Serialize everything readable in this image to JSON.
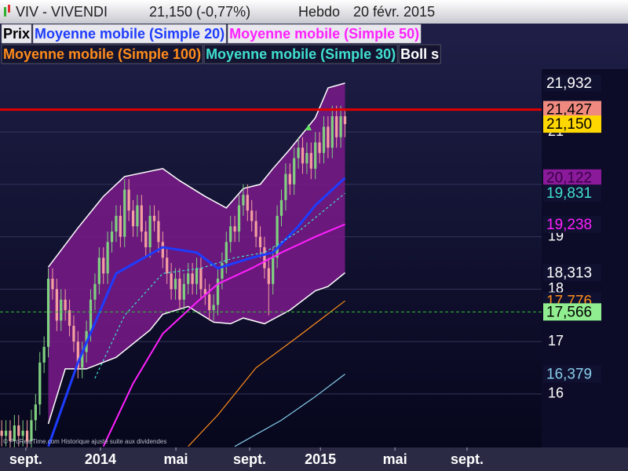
{
  "chart_data": {
    "type": "candlestick",
    "title": "VIV - VIVENDI",
    "quote": "21,150 (-0,77%)",
    "period": "Hebdo",
    "date": "20 févr. 2015",
    "note": "© ProRealTime.com Historique ajusté suite aux dividendes",
    "ylim": [
      14.98,
      22.2
    ],
    "yticks": [
      16,
      17,
      18,
      19,
      20,
      21
    ],
    "xlim": [
      -0.4,
      127.4
    ],
    "xticks": [
      {
        "value": 5.7,
        "label": "sept."
      },
      {
        "value": 23.3,
        "label": "2014"
      },
      {
        "value": 41.1,
        "label": "mai"
      },
      {
        "value": 58.5,
        "label": "sept."
      },
      {
        "value": 75.2,
        "label": "2015"
      },
      {
        "value": 92.8,
        "label": "mai"
      },
      {
        "value": 109.8,
        "label": "sept."
      }
    ],
    "grid": true,
    "prices": {
      "name": "Prix",
      "up_color": "#80d080",
      "down_color": "#f4a0a0",
      "x": [
        0,
        1,
        2,
        3,
        4,
        5,
        6,
        7,
        8,
        9,
        10,
        11,
        12,
        13,
        14,
        15,
        16,
        17,
        18,
        19,
        20,
        21,
        22,
        23,
        24,
        25,
        26,
        27,
        28,
        29,
        30,
        31,
        32,
        33,
        34,
        35,
        36,
        37,
        38,
        39,
        40,
        41,
        42,
        43,
        44,
        45,
        46,
        47,
        48,
        49,
        50,
        51,
        52,
        53,
        54,
        55,
        56,
        57,
        58,
        59,
        60,
        61,
        62,
        63,
        64,
        65,
        66,
        67,
        68,
        69,
        70,
        71,
        72,
        73,
        74,
        75,
        76,
        77,
        78,
        79,
        80,
        81
      ],
      "open": [
        15.3,
        15.2,
        15.3,
        15.1,
        15.4,
        15.2,
        15.3,
        15.1,
        15.5,
        15.8,
        16.6,
        16.9,
        18.2,
        18.0,
        17.4,
        17.8,
        17.6,
        17.3,
        17.0,
        16.5,
        16.8,
        17.2,
        17.8,
        18.1,
        18.6,
        18.3,
        18.9,
        19.1,
        19.4,
        19.0,
        19.9,
        19.5,
        19.2,
        19.6,
        19.1,
        18.8,
        19.4,
        19.3,
        18.9,
        18.6,
        18.3,
        18.0,
        18.2,
        17.8,
        18.1,
        18.3,
        18.1,
        18.4,
        18.0,
        17.9,
        17.6,
        17.7,
        18.2,
        18.5,
        18.9,
        19.2,
        19.1,
        19.6,
        19.8,
        19.5,
        19.3,
        19.0,
        18.8,
        18.4,
        18.1,
        18.6,
        19.4,
        19.7,
        20.2,
        20.0,
        20.5,
        20.7,
        20.4,
        20.6,
        20.3,
        20.8,
        20.6,
        21.1,
        20.7,
        21.3,
        20.9,
        21.3
      ],
      "high": [
        15.5,
        15.5,
        15.5,
        15.6,
        15.6,
        15.5,
        15.5,
        15.7,
        16.0,
        16.8,
        17.1,
        18.4,
        18.4,
        18.2,
        18.0,
        18.0,
        17.8,
        17.5,
        17.2,
        17.0,
        17.4,
        18.0,
        18.3,
        18.8,
        18.8,
        19.1,
        19.3,
        19.6,
        19.6,
        20.1,
        20.1,
        19.7,
        19.8,
        19.8,
        19.3,
        19.6,
        19.6,
        19.5,
        19.1,
        18.8,
        18.5,
        18.4,
        18.4,
        18.3,
        18.5,
        18.5,
        18.6,
        18.6,
        18.2,
        18.1,
        17.9,
        18.4,
        18.7,
        19.1,
        19.4,
        19.4,
        19.8,
        20.0,
        20.0,
        19.7,
        19.5,
        19.2,
        19.0,
        18.6,
        18.8,
        19.6,
        19.9,
        20.4,
        20.4,
        20.7,
        20.9,
        20.9,
        20.8,
        20.8,
        21.0,
        21.0,
        21.3,
        21.3,
        21.5,
        21.5,
        21.5,
        21.4
      ],
      "low": [
        15.0,
        15.0,
        14.9,
        14.9,
        15.0,
        15.0,
        14.9,
        14.9,
        15.3,
        15.6,
        16.4,
        16.7,
        17.8,
        17.2,
        17.2,
        17.4,
        17.1,
        16.8,
        16.3,
        16.3,
        16.6,
        17.0,
        17.6,
        17.9,
        18.1,
        18.1,
        18.7,
        18.9,
        18.8,
        18.8,
        19.3,
        19.0,
        19.0,
        18.9,
        18.6,
        18.6,
        19.1,
        18.7,
        18.4,
        18.1,
        17.8,
        17.8,
        17.6,
        17.6,
        17.9,
        17.9,
        17.9,
        17.8,
        17.7,
        17.4,
        17.4,
        17.5,
        18.0,
        18.3,
        18.7,
        18.9,
        18.9,
        19.4,
        19.3,
        19.1,
        18.8,
        18.6,
        18.2,
        17.5,
        17.9,
        18.4,
        19.2,
        19.5,
        19.8,
        19.8,
        20.3,
        20.2,
        20.2,
        20.1,
        20.1,
        20.4,
        20.4,
        20.5,
        20.5,
        20.7,
        20.7,
        20.9
      ],
      "close": [
        15.2,
        15.3,
        15.1,
        15.4,
        15.2,
        15.3,
        15.1,
        15.5,
        15.8,
        16.6,
        16.9,
        18.2,
        18.0,
        17.4,
        17.8,
        17.6,
        17.3,
        17.0,
        16.5,
        16.8,
        17.2,
        17.8,
        18.1,
        18.6,
        18.3,
        18.9,
        19.1,
        19.4,
        19.0,
        19.9,
        19.5,
        19.2,
        19.6,
        19.1,
        18.8,
        19.4,
        19.3,
        18.9,
        18.6,
        18.3,
        18.0,
        18.2,
        17.8,
        18.1,
        18.3,
        18.1,
        18.4,
        18.0,
        17.9,
        17.6,
        17.7,
        18.2,
        18.5,
        18.9,
        19.2,
        19.1,
        19.6,
        19.8,
        19.5,
        19.3,
        19.0,
        18.8,
        18.4,
        18.1,
        18.6,
        19.4,
        19.7,
        20.2,
        20.0,
        20.5,
        20.7,
        20.4,
        20.6,
        20.3,
        20.8,
        20.6,
        21.1,
        20.7,
        21.3,
        20.9,
        21.3,
        21.15
      ]
    },
    "bollinger": {
      "name": "Boll s",
      "color": "#ffffff",
      "fill": "#7a1a8a",
      "upper": {
        "x": [
          11,
          18,
          24,
          29,
          38,
          42,
          48,
          53,
          57,
          61,
          64,
          68,
          74,
          77,
          81
        ],
        "values": [
          18.42,
          19.17,
          19.77,
          20.15,
          20.3,
          20.07,
          19.77,
          19.55,
          19.92,
          20.0,
          20.3,
          20.67,
          21.27,
          21.84,
          21.932
        ]
      },
      "lower": {
        "x": [
          11,
          15,
          20,
          27,
          35,
          38,
          44,
          50,
          54,
          57,
          62,
          68,
          74,
          77,
          81
        ],
        "values": [
          15.43,
          16.48,
          16.48,
          16.7,
          17.22,
          17.52,
          17.67,
          17.37,
          17.34,
          17.45,
          17.34,
          17.6,
          17.97,
          18.05,
          18.313
        ]
      }
    },
    "series": [
      {
        "name": "Moyenne mobile (Simple 20)",
        "color": "#1e3cff",
        "width": 3,
        "dash": false,
        "x": [
          11,
          18,
          27,
          38,
          46,
          51,
          59,
          64,
          70,
          74,
          81
        ],
        "values": [
          15.0,
          16.6,
          18.3,
          18.8,
          18.7,
          18.4,
          18.6,
          18.7,
          19.2,
          19.6,
          20.122
        ]
      },
      {
        "name": "Moyenne mobile (Simple 50)",
        "color": "#ff20ff",
        "width": 2,
        "dash": false,
        "x": [
          24,
          31,
          38,
          46,
          51,
          59,
          66,
          74,
          81
        ],
        "values": [
          15.0,
          16.2,
          17.15,
          17.75,
          18.1,
          18.4,
          18.7,
          19.0,
          19.238
        ]
      },
      {
        "name": "Moyenne mobile (Simple 100)",
        "color": "#ff8c1a",
        "width": 1.2,
        "dash": false,
        "x": [
          44,
          51,
          60,
          70,
          81
        ],
        "values": [
          15.0,
          15.6,
          16.5,
          17.1,
          17.776
        ]
      },
      {
        "name": "Moyenne mobile (Simple 30)",
        "color": "#40e0d0",
        "width": 1.2,
        "dash": true,
        "x": [
          22,
          29,
          38,
          47,
          55,
          62,
          70,
          81
        ],
        "values": [
          16.3,
          17.5,
          18.3,
          18.4,
          18.6,
          18.7,
          19.1,
          19.831
        ]
      },
      {
        "color": "#87ceeb",
        "width": 1.2,
        "dash": false,
        "x": [
          55,
          66,
          74,
          81
        ],
        "values": [
          15.0,
          15.5,
          15.95,
          16.379
        ]
      }
    ],
    "hlines": [
      {
        "value": 21.427,
        "color": "#e00000",
        "dash": false
      },
      {
        "value": 17.566,
        "color": "#30c030",
        "dash": true
      }
    ],
    "tags": [
      {
        "value": 21.932,
        "label": "21,932",
        "color": "#ffffff",
        "bg": "#101030"
      },
      {
        "value": 21.427,
        "label": "21,427",
        "color": "#000000",
        "bg": "#f08a80"
      },
      {
        "value": 21.15,
        "label": "21,150",
        "color": "#000000",
        "bg": "#ffd700"
      },
      {
        "value": 20.122,
        "label": "20,122",
        "color": "#3a0048",
        "bg": "#8a1a9a"
      },
      {
        "value": 19.831,
        "label": "19,831",
        "color": "#40e0d0",
        "bg": "#101030"
      },
      {
        "value": 19.238,
        "label": "19,238",
        "color": "#ff20ff",
        "bg": "#101030"
      },
      {
        "value": 18.313,
        "label": "18,313",
        "color": "#ffffff",
        "bg": "#101030"
      },
      {
        "value": 17.776,
        "label": "17,776",
        "color": "#ff8c1a",
        "bg": "#101030"
      },
      {
        "value": 17.566,
        "label": "17,566",
        "color": "#000000",
        "bg": "#90ee90"
      },
      {
        "value": 16.379,
        "label": "16,379",
        "color": "#87ceeb",
        "bg": "#101030"
      }
    ]
  }
}
